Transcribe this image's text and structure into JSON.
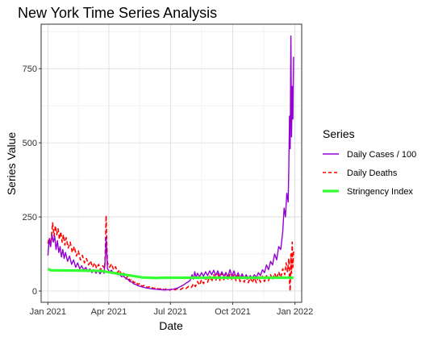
{
  "chart_data": {
    "type": "line",
    "title": "New York Time Series Analysis",
    "xlabel": "Date",
    "ylabel": "Series Value",
    "x_range": [
      "2020-12-22",
      "2022-01-11"
    ],
    "ylim": [
      -38,
      900
    ],
    "x_ticks": [
      {
        "date": "2021-01-01",
        "label": "Jan 2021"
      },
      {
        "date": "2021-04-01",
        "label": "Apr 2021"
      },
      {
        "date": "2021-07-01",
        "label": "Jul 2021"
      },
      {
        "date": "2021-10-01",
        "label": "Oct 2021"
      },
      {
        "date": "2022-01-01",
        "label": "Jan 2022"
      }
    ],
    "y_ticks": [
      0,
      250,
      500,
      750
    ],
    "grid": true,
    "legend": {
      "title": "Series",
      "position": "right"
    },
    "series": [
      {
        "name": "Daily Cases / 100",
        "color": "#9400d3",
        "style": "solid",
        "points": [
          [
            "2021-01-01",
            120
          ],
          [
            "2021-01-03",
            175
          ],
          [
            "2021-01-05",
            150
          ],
          [
            "2021-01-07",
            190
          ],
          [
            "2021-01-09",
            165
          ],
          [
            "2021-01-11",
            185
          ],
          [
            "2021-01-13",
            140
          ],
          [
            "2021-01-15",
            170
          ],
          [
            "2021-01-17",
            130
          ],
          [
            "2021-01-19",
            150
          ],
          [
            "2021-01-21",
            115
          ],
          [
            "2021-01-23",
            140
          ],
          [
            "2021-01-25",
            110
          ],
          [
            "2021-01-27",
            130
          ],
          [
            "2021-01-30",
            100
          ],
          [
            "2021-02-02",
            118
          ],
          [
            "2021-02-05",
            90
          ],
          [
            "2021-02-08",
            105
          ],
          [
            "2021-02-11",
            80
          ],
          [
            "2021-02-14",
            95
          ],
          [
            "2021-02-17",
            75
          ],
          [
            "2021-02-20",
            85
          ],
          [
            "2021-02-23",
            70
          ],
          [
            "2021-02-26",
            80
          ],
          [
            "2021-03-01",
            65
          ],
          [
            "2021-03-04",
            75
          ],
          [
            "2021-03-07",
            62
          ],
          [
            "2021-03-10",
            72
          ],
          [
            "2021-03-13",
            60
          ],
          [
            "2021-03-16",
            70
          ],
          [
            "2021-03-19",
            58
          ],
          [
            "2021-03-22",
            68
          ],
          [
            "2021-03-25",
            60
          ],
          [
            "2021-03-27",
            115
          ],
          [
            "2021-03-28",
            180
          ],
          [
            "2021-03-29",
            130
          ],
          [
            "2021-03-30",
            75
          ],
          [
            "2021-04-02",
            65
          ],
          [
            "2021-04-05",
            70
          ],
          [
            "2021-04-08",
            60
          ],
          [
            "2021-04-11",
            62
          ],
          [
            "2021-04-14",
            55
          ],
          [
            "2021-04-17",
            56
          ],
          [
            "2021-04-20",
            48
          ],
          [
            "2021-04-23",
            50
          ],
          [
            "2021-04-26",
            42
          ],
          [
            "2021-04-29",
            40
          ],
          [
            "2021-05-02",
            32
          ],
          [
            "2021-05-05",
            30
          ],
          [
            "2021-05-08",
            24
          ],
          [
            "2021-05-11",
            22
          ],
          [
            "2021-05-14",
            18
          ],
          [
            "2021-05-17",
            16
          ],
          [
            "2021-05-20",
            14
          ],
          [
            "2021-05-25",
            11
          ],
          [
            "2021-05-30",
            9
          ],
          [
            "2021-06-05",
            7
          ],
          [
            "2021-06-10",
            6
          ],
          [
            "2021-06-15",
            5
          ],
          [
            "2021-06-20",
            4
          ],
          [
            "2021-06-25",
            4
          ],
          [
            "2021-06-30",
            5
          ],
          [
            "2021-07-05",
            6
          ],
          [
            "2021-07-10",
            9
          ],
          [
            "2021-07-15",
            14
          ],
          [
            "2021-07-20",
            20
          ],
          [
            "2021-07-25",
            28
          ],
          [
            "2021-07-30",
            35
          ],
          [
            "2021-08-02",
            55
          ],
          [
            "2021-08-04",
            40
          ],
          [
            "2021-08-06",
            65
          ],
          [
            "2021-08-08",
            45
          ],
          [
            "2021-08-10",
            60
          ],
          [
            "2021-08-13",
            48
          ],
          [
            "2021-08-16",
            62
          ],
          [
            "2021-08-19",
            50
          ],
          [
            "2021-08-22",
            65
          ],
          [
            "2021-08-25",
            52
          ],
          [
            "2021-08-28",
            68
          ],
          [
            "2021-08-31",
            55
          ],
          [
            "2021-09-03",
            70
          ],
          [
            "2021-09-06",
            52
          ],
          [
            "2021-09-09",
            68
          ],
          [
            "2021-09-12",
            50
          ],
          [
            "2021-09-15",
            65
          ],
          [
            "2021-09-18",
            50
          ],
          [
            "2021-09-21",
            62
          ],
          [
            "2021-09-24",
            48
          ],
          [
            "2021-09-27",
            72
          ],
          [
            "2021-09-30",
            50
          ],
          [
            "2021-10-03",
            68
          ],
          [
            "2021-10-06",
            45
          ],
          [
            "2021-10-09",
            62
          ],
          [
            "2021-10-12",
            44
          ],
          [
            "2021-10-15",
            58
          ],
          [
            "2021-10-18",
            42
          ],
          [
            "2021-10-21",
            55
          ],
          [
            "2021-10-24",
            42
          ],
          [
            "2021-10-27",
            52
          ],
          [
            "2021-10-30",
            44
          ],
          [
            "2021-11-02",
            55
          ],
          [
            "2021-11-05",
            46
          ],
          [
            "2021-11-08",
            62
          ],
          [
            "2021-11-11",
            52
          ],
          [
            "2021-11-14",
            72
          ],
          [
            "2021-11-17",
            62
          ],
          [
            "2021-11-20",
            88
          ],
          [
            "2021-11-23",
            72
          ],
          [
            "2021-11-26",
            100
          ],
          [
            "2021-11-29",
            88
          ],
          [
            "2021-12-02",
            125
          ],
          [
            "2021-12-05",
            105
          ],
          [
            "2021-12-08",
            150
          ],
          [
            "2021-12-11",
            140
          ],
          [
            "2021-12-14",
            200
          ],
          [
            "2021-12-16",
            280
          ],
          [
            "2021-12-18",
            250
          ],
          [
            "2021-12-20",
            330
          ],
          [
            "2021-12-22",
            300
          ],
          [
            "2021-12-23",
            420
          ],
          [
            "2021-12-24",
            590
          ],
          [
            "2021-12-25",
            480
          ],
          [
            "2021-12-26",
            860
          ],
          [
            "2021-12-27",
            520
          ],
          [
            "2021-12-28",
            690
          ],
          [
            "2021-12-29",
            580
          ],
          [
            "2021-12-30",
            790
          ]
        ]
      },
      {
        "name": "Daily Deaths",
        "color": "#ff0000",
        "style": "dashed",
        "points": [
          [
            "2021-01-01",
            160
          ],
          [
            "2021-01-03",
            180
          ],
          [
            "2021-01-05",
            150
          ],
          [
            "2021-01-07",
            205
          ],
          [
            "2021-01-08",
            230
          ],
          [
            "2021-01-10",
            185
          ],
          [
            "2021-01-12",
            220
          ],
          [
            "2021-01-14",
            190
          ],
          [
            "2021-01-16",
            210
          ],
          [
            "2021-01-18",
            175
          ],
          [
            "2021-01-20",
            200
          ],
          [
            "2021-01-22",
            165
          ],
          [
            "2021-01-24",
            190
          ],
          [
            "2021-01-26",
            155
          ],
          [
            "2021-01-28",
            180
          ],
          [
            "2021-01-31",
            145
          ],
          [
            "2021-02-03",
            165
          ],
          [
            "2021-02-06",
            130
          ],
          [
            "2021-02-09",
            150
          ],
          [
            "2021-02-12",
            118
          ],
          [
            "2021-02-15",
            135
          ],
          [
            "2021-02-18",
            105
          ],
          [
            "2021-02-21",
            120
          ],
          [
            "2021-02-24",
            95
          ],
          [
            "2021-02-27",
            110
          ],
          [
            "2021-03-02",
            88
          ],
          [
            "2021-03-05",
            102
          ],
          [
            "2021-03-08",
            80
          ],
          [
            "2021-03-11",
            95
          ],
          [
            "2021-03-14",
            76
          ],
          [
            "2021-03-17",
            90
          ],
          [
            "2021-03-20",
            70
          ],
          [
            "2021-03-23",
            85
          ],
          [
            "2021-03-26",
            75
          ],
          [
            "2021-03-27",
            150
          ],
          [
            "2021-03-28",
            255
          ],
          [
            "2021-03-29",
            160
          ],
          [
            "2021-03-30",
            95
          ],
          [
            "2021-04-02",
            80
          ],
          [
            "2021-04-05",
            92
          ],
          [
            "2021-04-08",
            72
          ],
          [
            "2021-04-11",
            82
          ],
          [
            "2021-04-14",
            62
          ],
          [
            "2021-04-17",
            72
          ],
          [
            "2021-04-20",
            52
          ],
          [
            "2021-04-23",
            60
          ],
          [
            "2021-04-26",
            42
          ],
          [
            "2021-04-29",
            50
          ],
          [
            "2021-05-02",
            35
          ],
          [
            "2021-05-05",
            40
          ],
          [
            "2021-05-08",
            28
          ],
          [
            "2021-05-11",
            32
          ],
          [
            "2021-05-14",
            22
          ],
          [
            "2021-05-17",
            26
          ],
          [
            "2021-05-20",
            16
          ],
          [
            "2021-05-24",
            20
          ],
          [
            "2021-05-28",
            12
          ],
          [
            "2021-06-02",
            16
          ],
          [
            "2021-06-06",
            8
          ],
          [
            "2021-06-10",
            12
          ],
          [
            "2021-06-14",
            6
          ],
          [
            "2021-06-18",
            10
          ],
          [
            "2021-06-22",
            4
          ],
          [
            "2021-06-26",
            9
          ],
          [
            "2021-06-30",
            3
          ],
          [
            "2021-07-04",
            8
          ],
          [
            "2021-07-08",
            4
          ],
          [
            "2021-07-12",
            9
          ],
          [
            "2021-07-16",
            5
          ],
          [
            "2021-07-20",
            11
          ],
          [
            "2021-07-24",
            8
          ],
          [
            "2021-07-28",
            16
          ],
          [
            "2021-08-01",
            12
          ],
          [
            "2021-08-04",
            25
          ],
          [
            "2021-08-07",
            15
          ],
          [
            "2021-08-10",
            32
          ],
          [
            "2021-08-13",
            20
          ],
          [
            "2021-08-16",
            38
          ],
          [
            "2021-08-19",
            25
          ],
          [
            "2021-08-22",
            45
          ],
          [
            "2021-08-25",
            30
          ],
          [
            "2021-08-28",
            50
          ],
          [
            "2021-08-31",
            32
          ],
          [
            "2021-09-03",
            55
          ],
          [
            "2021-09-06",
            35
          ],
          [
            "2021-09-09",
            58
          ],
          [
            "2021-09-12",
            36
          ],
          [
            "2021-09-15",
            60
          ],
          [
            "2021-09-18",
            38
          ],
          [
            "2021-09-21",
            62
          ],
          [
            "2021-09-24",
            38
          ],
          [
            "2021-09-27",
            58
          ],
          [
            "2021-09-30",
            36
          ],
          [
            "2021-10-03",
            55
          ],
          [
            "2021-10-06",
            35
          ],
          [
            "2021-10-09",
            52
          ],
          [
            "2021-10-12",
            32
          ],
          [
            "2021-10-15",
            50
          ],
          [
            "2021-10-18",
            30
          ],
          [
            "2021-10-21",
            48
          ],
          [
            "2021-10-24",
            28
          ],
          [
            "2021-10-27",
            46
          ],
          [
            "2021-10-30",
            28
          ],
          [
            "2021-11-02",
            45
          ],
          [
            "2021-11-05",
            28
          ],
          [
            "2021-11-08",
            48
          ],
          [
            "2021-11-11",
            30
          ],
          [
            "2021-11-14",
            50
          ],
          [
            "2021-11-17",
            32
          ],
          [
            "2021-11-20",
            52
          ],
          [
            "2021-11-23",
            35
          ],
          [
            "2021-11-26",
            55
          ],
          [
            "2021-11-29",
            38
          ],
          [
            "2021-12-02",
            60
          ],
          [
            "2021-12-05",
            42
          ],
          [
            "2021-12-08",
            65
          ],
          [
            "2021-12-11",
            45
          ],
          [
            "2021-12-14",
            75
          ],
          [
            "2021-12-17",
            55
          ],
          [
            "2021-12-19",
            95
          ],
          [
            "2021-12-21",
            65
          ],
          [
            "2021-12-23",
            110
          ],
          [
            "2021-12-24",
            30
          ],
          [
            "2021-12-25",
            0
          ],
          [
            "2021-12-26",
            125
          ],
          [
            "2021-12-27",
            60
          ],
          [
            "2021-12-28",
            165
          ],
          [
            "2021-12-29",
            80
          ],
          [
            "2021-12-30",
            135
          ]
        ]
      },
      {
        "name": "Stringency Index",
        "color": "#33ff33",
        "style": "solid-thick",
        "points": [
          [
            "2021-01-01",
            75
          ],
          [
            "2021-01-05",
            70
          ],
          [
            "2021-03-20",
            68
          ],
          [
            "2021-04-10",
            60
          ],
          [
            "2021-05-01",
            53
          ],
          [
            "2021-05-20",
            46
          ],
          [
            "2021-06-10",
            44
          ],
          [
            "2021-06-20",
            45
          ],
          [
            "2021-12-30",
            45
          ]
        ]
      }
    ]
  }
}
